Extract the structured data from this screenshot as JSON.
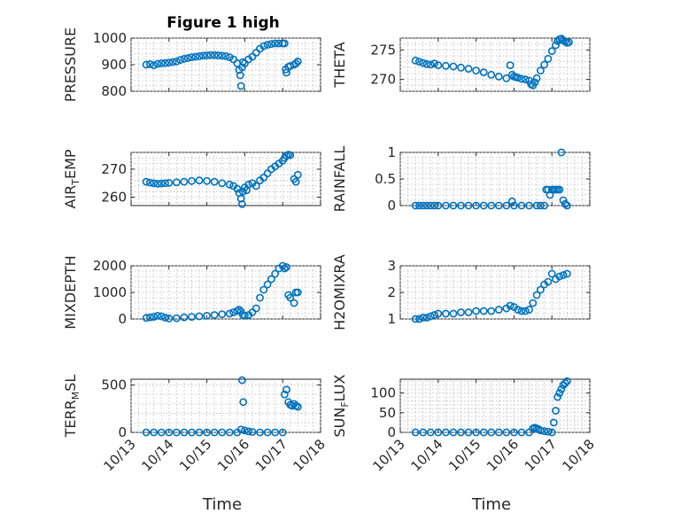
{
  "figure_title": "Figure 1 high",
  "x_axis_label": "Time",
  "x_tick_labels": [
    "10/13",
    "10/14",
    "10/15",
    "10/16",
    "10/17",
    "10/18"
  ],
  "marker_color": "#0072bd",
  "chart_data": [
    {
      "type": "scatter",
      "title": "Figure 1 high",
      "ylabel": "PRESSURE",
      "ylabel_main": "PRESSURE",
      "ylabel_sub": "",
      "ylabel_rest": "",
      "xlim": [
        13.0,
        18.0
      ],
      "ylim": [
        800,
        1000
      ],
      "yticks": [
        800,
        900,
        1000
      ],
      "ytick_labels": [
        "800",
        "900",
        "1000"
      ],
      "x": [
        13.4,
        13.5,
        13.6,
        13.7,
        13.8,
        13.9,
        14.0,
        14.1,
        14.2,
        14.3,
        14.4,
        14.5,
        14.6,
        14.7,
        14.8,
        14.9,
        15.0,
        15.1,
        15.2,
        15.3,
        15.4,
        15.5,
        15.6,
        15.7,
        15.8,
        15.85,
        15.88,
        15.9,
        15.93,
        15.95,
        16.0,
        16.1,
        16.2,
        16.3,
        16.4,
        16.5,
        16.6,
        16.7,
        16.8,
        16.9,
        17.0,
        17.05,
        17.08,
        17.1,
        17.15,
        17.2,
        17.3,
        17.35,
        17.4
      ],
      "y": [
        900,
        902,
        898,
        903,
        905,
        906,
        908,
        910,
        912,
        918,
        922,
        925,
        928,
        930,
        932,
        934,
        935,
        936,
        936,
        935,
        934,
        932,
        928,
        920,
        905,
        880,
        860,
        820,
        890,
        910,
        905,
        920,
        930,
        945,
        960,
        970,
        975,
        978,
        980,
        980,
        980,
        980,
        882,
        870,
        892,
        895,
        900,
        905,
        912
      ]
    },
    {
      "type": "scatter",
      "ylabel": "THETA",
      "ylabel_main": "THETA",
      "ylabel_sub": "",
      "ylabel_rest": "",
      "xlim": [
        13.0,
        18.0
      ],
      "ylim": [
        268,
        277
      ],
      "yticks": [
        270,
        275
      ],
      "ytick_labels": [
        "270",
        "275"
      ],
      "x": [
        13.4,
        13.5,
        13.6,
        13.7,
        13.8,
        13.9,
        14.0,
        14.2,
        14.4,
        14.6,
        14.8,
        15.0,
        15.2,
        15.4,
        15.6,
        15.8,
        15.9,
        15.95,
        16.0,
        16.05,
        16.1,
        16.2,
        16.3,
        16.4,
        16.45,
        16.5,
        16.55,
        16.6,
        16.7,
        16.8,
        16.9,
        17.0,
        17.1,
        17.15,
        17.2,
        17.25,
        17.3,
        17.35,
        17.4,
        17.45
      ],
      "y": [
        273.2,
        273.0,
        272.8,
        272.6,
        272.5,
        272.7,
        272.4,
        272.3,
        272.2,
        272.0,
        271.8,
        271.5,
        271.2,
        270.8,
        270.5,
        270.2,
        272.4,
        270.8,
        270.5,
        270.4,
        270.3,
        270.1,
        270.0,
        269.8,
        269.2,
        269.0,
        269.5,
        270.2,
        271.5,
        272.5,
        273.5,
        274.8,
        275.8,
        276.5,
        276.8,
        276.9,
        276.6,
        276.4,
        276.2,
        276.3
      ]
    },
    {
      "type": "scatter",
      "ylabel": "AIR_TEMP",
      "ylabel_main": "AIR",
      "ylabel_sub": "T",
      "ylabel_rest": "EMP",
      "xlim": [
        13.0,
        18.0
      ],
      "ylim": [
        257,
        276
      ],
      "yticks": [
        260,
        270
      ],
      "ytick_labels": [
        "260",
        "270"
      ],
      "x": [
        13.4,
        13.5,
        13.6,
        13.7,
        13.8,
        13.9,
        14.0,
        14.2,
        14.4,
        14.6,
        14.8,
        15.0,
        15.2,
        15.4,
        15.6,
        15.7,
        15.8,
        15.85,
        15.9,
        15.93,
        15.95,
        16.0,
        16.05,
        16.1,
        16.2,
        16.3,
        16.4,
        16.5,
        16.6,
        16.7,
        16.8,
        16.9,
        17.0,
        17.05,
        17.1,
        17.15,
        17.2,
        17.3,
        17.35,
        17.4
      ],
      "y": [
        265.5,
        265.2,
        265.0,
        264.8,
        264.9,
        265.0,
        265.1,
        265.3,
        265.5,
        265.8,
        266.0,
        265.8,
        265.5,
        265.0,
        264.5,
        264.0,
        263.0,
        261.5,
        259.5,
        257.5,
        262.0,
        263.5,
        262.5,
        264.5,
        265.0,
        264.0,
        266.0,
        267.0,
        268.5,
        270.0,
        271.0,
        272.0,
        273.0,
        274.0,
        274.8,
        275.2,
        275.0,
        266.5,
        265.5,
        268.0
      ]
    },
    {
      "type": "scatter",
      "ylabel": "RAINFALL",
      "ylabel_main": "RAINFALL",
      "ylabel_sub": "",
      "ylabel_rest": "",
      "xlim": [
        13.0,
        18.0
      ],
      "ylim": [
        0,
        1
      ],
      "yticks": [
        0,
        0.5,
        1
      ],
      "ytick_labels": [
        "0",
        "0.5",
        "1"
      ],
      "x": [
        13.4,
        13.5,
        13.6,
        13.7,
        13.8,
        13.9,
        14.0,
        14.2,
        14.4,
        14.6,
        14.8,
        15.0,
        15.2,
        15.4,
        15.6,
        15.8,
        15.95,
        16.0,
        16.2,
        16.4,
        16.6,
        16.7,
        16.8,
        16.85,
        16.9,
        16.95,
        17.0,
        17.05,
        17.1,
        17.15,
        17.2,
        17.25,
        17.3,
        17.35,
        17.4
      ],
      "y": [
        0,
        0,
        0,
        0,
        0,
        0,
        0,
        0,
        0,
        0,
        0,
        0,
        0,
        0,
        0,
        0,
        0.08,
        0,
        0,
        0,
        0,
        0,
        0,
        0.3,
        0.3,
        0.2,
        0.3,
        0.3,
        0.3,
        0.3,
        0.3,
        1.0,
        0.1,
        0.03,
        0
      ]
    },
    {
      "type": "scatter",
      "ylabel": "MIXDEPTH",
      "ylabel_main": "MIXDEPTH",
      "ylabel_sub": "",
      "ylabel_rest": "",
      "xlim": [
        13.0,
        18.0
      ],
      "ylim": [
        0,
        2000
      ],
      "yticks": [
        0,
        1000,
        2000
      ],
      "ytick_labels": [
        "0",
        "1000",
        "2000"
      ],
      "x": [
        13.4,
        13.5,
        13.6,
        13.7,
        13.8,
        13.9,
        14.0,
        14.2,
        14.4,
        14.6,
        14.8,
        15.0,
        15.2,
        15.4,
        15.6,
        15.7,
        15.8,
        15.85,
        15.9,
        15.95,
        16.0,
        16.1,
        16.2,
        16.3,
        16.4,
        16.5,
        16.6,
        16.7,
        16.8,
        16.9,
        17.0,
        17.05,
        17.1,
        17.15,
        17.2,
        17.3,
        17.35,
        17.4
      ],
      "y": [
        40,
        60,
        80,
        120,
        100,
        50,
        20,
        30,
        60,
        80,
        100,
        120,
        150,
        180,
        200,
        250,
        300,
        350,
        280,
        150,
        120,
        150,
        250,
        400,
        800,
        1100,
        1300,
        1500,
        1700,
        1900,
        2000,
        1900,
        1950,
        900,
        800,
        600,
        1000,
        1000
      ]
    },
    {
      "type": "scatter",
      "ylabel": "H2OMIXRA",
      "ylabel_main": "H2OMIXRA",
      "ylabel_sub": "",
      "ylabel_rest": "",
      "xlim": [
        13.0,
        18.0
      ],
      "ylim": [
        1,
        3
      ],
      "yticks": [
        1,
        2,
        3
      ],
      "ytick_labels": [
        "1",
        "2",
        "3"
      ],
      "x": [
        13.4,
        13.5,
        13.6,
        13.7,
        13.8,
        13.9,
        14.0,
        14.2,
        14.4,
        14.6,
        14.8,
        15.0,
        15.2,
        15.4,
        15.6,
        15.8,
        15.9,
        16.0,
        16.1,
        16.2,
        16.3,
        16.4,
        16.5,
        16.6,
        16.7,
        16.8,
        16.9,
        17.0,
        17.1,
        17.2,
        17.3,
        17.4
      ],
      "y": [
        1.0,
        1.0,
        1.05,
        1.05,
        1.1,
        1.15,
        1.2,
        1.2,
        1.2,
        1.25,
        1.25,
        1.3,
        1.3,
        1.3,
        1.35,
        1.4,
        1.5,
        1.45,
        1.35,
        1.3,
        1.3,
        1.35,
        1.6,
        1.9,
        2.1,
        2.3,
        2.4,
        2.7,
        2.5,
        2.6,
        2.65,
        2.7
      ]
    },
    {
      "type": "scatter",
      "ylabel": "TERR_MSL",
      "ylabel_main": "TERR",
      "ylabel_sub": "M",
      "ylabel_rest": "SL",
      "xlim": [
        13.0,
        18.0
      ],
      "ylim": [
        0,
        560
      ],
      "yticks": [
        0,
        500
      ],
      "ytick_labels": [
        "0",
        "500"
      ],
      "x": [
        13.4,
        13.6,
        13.8,
        14.0,
        14.2,
        14.4,
        14.6,
        14.8,
        15.0,
        15.2,
        15.4,
        15.6,
        15.8,
        15.9,
        15.93,
        15.96,
        16.0,
        16.1,
        16.2,
        16.4,
        16.6,
        16.8,
        17.0,
        17.05,
        17.1,
        17.15,
        17.2,
        17.25,
        17.3,
        17.35,
        17.4
      ],
      "y": [
        0,
        0,
        0,
        0,
        0,
        0,
        0,
        0,
        0,
        0,
        0,
        0,
        0,
        30,
        550,
        320,
        20,
        10,
        5,
        0,
        0,
        0,
        0,
        400,
        450,
        320,
        290,
        280,
        300,
        280,
        270
      ]
    },
    {
      "type": "scatter",
      "ylabel": "SUN_FLUX",
      "ylabel_main": "SUN",
      "ylabel_sub": "F",
      "ylabel_rest": "LUX",
      "xlim": [
        13.0,
        18.0
      ],
      "ylim": [
        0,
        135
      ],
      "yticks": [
        0,
        50,
        100
      ],
      "ytick_labels": [
        "0",
        "50",
        "100"
      ],
      "x": [
        13.4,
        13.6,
        13.8,
        14.0,
        14.2,
        14.4,
        14.6,
        14.8,
        15.0,
        15.2,
        15.4,
        15.6,
        15.8,
        16.0,
        16.2,
        16.4,
        16.5,
        16.55,
        16.6,
        16.65,
        16.7,
        16.8,
        16.9,
        17.0,
        17.05,
        17.1,
        17.15,
        17.2,
        17.25,
        17.3,
        17.35,
        17.4
      ],
      "y": [
        0,
        0,
        0,
        0,
        0,
        0,
        0,
        0,
        0,
        0,
        0,
        0,
        0,
        0,
        0,
        0,
        10,
        12,
        10,
        8,
        5,
        3,
        2,
        0,
        25,
        55,
        90,
        100,
        110,
        120,
        125,
        130
      ]
    }
  ]
}
